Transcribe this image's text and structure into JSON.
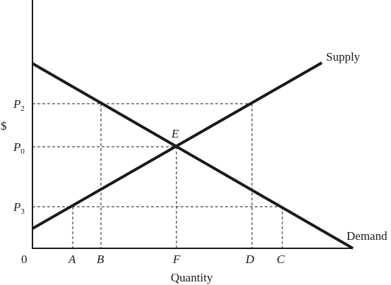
{
  "y_axis_label": "$",
  "x_axis_label": "Quantity",
  "origin_label": "0",
  "curves": {
    "supply": {
      "label": "Supply"
    },
    "demand": {
      "label": "Demand"
    }
  },
  "equilibrium_label": "E",
  "price_labels": {
    "p2": {
      "base": "P",
      "sub": "2"
    },
    "p0": {
      "base": "P",
      "sub": "0"
    },
    "p3": {
      "base": "P",
      "sub": "3"
    }
  },
  "quantity_labels": {
    "a": "A",
    "b": "B",
    "f": "F",
    "d": "D",
    "c": "C"
  }
}
